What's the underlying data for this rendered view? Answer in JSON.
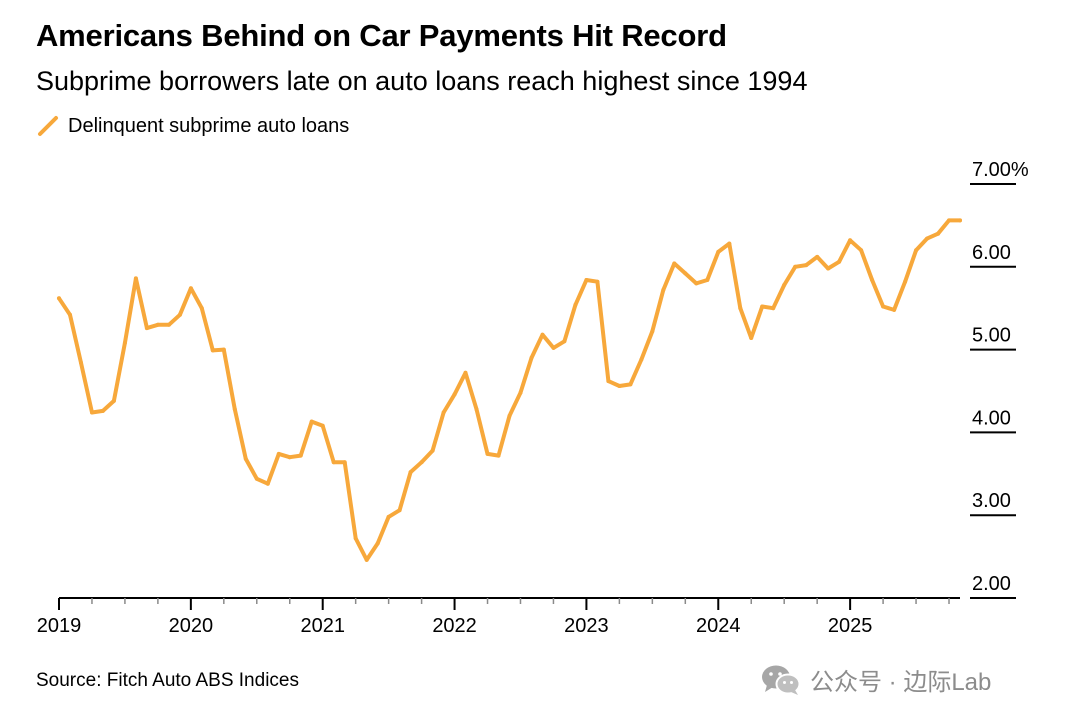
{
  "header": {
    "title": "Americans Behind on Car Payments Hit Record",
    "subtitle": "Subprime borrowers late on auto loans reach highest since 1994"
  },
  "legend": {
    "label": "Delinquent subprime auto loans",
    "icon": "line-stroke-icon"
  },
  "colors": {
    "series": "#F7A83B",
    "axis": "#000000",
    "tick": "#8a8a8a",
    "watermark": "#8c8c8c"
  },
  "footer": {
    "source": "Source: Fitch Auto ABS Indices"
  },
  "watermark": {
    "icon": "wechat-icon",
    "text": "公众号 · 边际Lab"
  },
  "chart_data": {
    "type": "line",
    "title": "Americans Behind on Car Payments Hit Record",
    "subtitle": "Subprime borrowers late on auto loans reach highest since 1994",
    "xlabel": "",
    "ylabel": "",
    "y_unit": "%",
    "ylim": [
      2.0,
      7.0
    ],
    "y_ticks": [
      {
        "value": 2.0,
        "label": "2.00"
      },
      {
        "value": 3.0,
        "label": "3.00"
      },
      {
        "value": 4.0,
        "label": "4.00"
      },
      {
        "value": 5.0,
        "label": "5.00"
      },
      {
        "value": 6.0,
        "label": "6.00"
      },
      {
        "value": 7.0,
        "label": "7.00%"
      }
    ],
    "x_start_year": 2019,
    "x_end_year": 2025.8333,
    "x_year_labels": [
      "2019",
      "2020",
      "2021",
      "2022",
      "2023",
      "2024",
      "2025"
    ],
    "legend_position": "top-left",
    "series": [
      {
        "name": "Delinquent subprime auto loans",
        "x": [
          2019.0,
          2019.0833,
          2019.1667,
          2019.25,
          2019.3333,
          2019.4167,
          2019.5,
          2019.5833,
          2019.6667,
          2019.75,
          2019.8333,
          2019.9167,
          2020.0,
          2020.0833,
          2020.1667,
          2020.25,
          2020.3333,
          2020.4167,
          2020.5,
          2020.5833,
          2020.6667,
          2020.75,
          2020.8333,
          2020.9167,
          2021.0,
          2021.0833,
          2021.1667,
          2021.25,
          2021.3333,
          2021.4167,
          2021.5,
          2021.5833,
          2021.6667,
          2021.75,
          2021.8333,
          2021.9167,
          2022.0,
          2022.0833,
          2022.1667,
          2022.25,
          2022.3333,
          2022.4167,
          2022.5,
          2022.5833,
          2022.6667,
          2022.75,
          2022.8333,
          2022.9167,
          2023.0,
          2023.0833,
          2023.1667,
          2023.25,
          2023.3333,
          2023.4167,
          2023.5,
          2023.5833,
          2023.6667,
          2023.75,
          2023.8333,
          2023.9167,
          2024.0,
          2024.0833,
          2024.1667,
          2024.25,
          2024.3333,
          2024.4167,
          2024.5,
          2024.5833,
          2024.6667,
          2024.75,
          2024.8333,
          2024.9167,
          2025.0,
          2025.0833,
          2025.1667,
          2025.25,
          2025.3333,
          2025.4167,
          2025.5,
          2025.5833,
          2025.6667,
          2025.75,
          2025.8333
        ],
        "values": [
          5.62,
          5.42,
          4.84,
          4.24,
          4.26,
          4.38,
          5.08,
          5.86,
          5.26,
          5.3,
          5.3,
          5.42,
          5.74,
          5.5,
          4.99,
          5.0,
          4.28,
          3.68,
          3.44,
          3.38,
          3.74,
          3.7,
          3.72,
          4.13,
          4.08,
          3.64,
          3.64,
          2.72,
          2.46,
          2.66,
          2.98,
          3.06,
          3.52,
          3.64,
          3.78,
          4.24,
          4.46,
          4.72,
          4.28,
          3.74,
          3.72,
          4.2,
          4.48,
          4.9,
          5.18,
          5.02,
          5.1,
          5.54,
          5.84,
          5.82,
          4.62,
          4.56,
          4.58,
          4.88,
          5.22,
          5.72,
          6.04,
          5.92,
          5.8,
          5.84,
          6.18,
          6.28,
          5.5,
          5.14,
          5.52,
          5.5,
          5.78,
          6.0,
          6.02,
          6.12,
          5.98,
          6.06,
          6.32,
          6.2,
          5.84,
          5.52,
          5.48,
          5.82,
          6.2,
          6.34,
          6.4,
          6.56,
          6.56
        ]
      }
    ]
  }
}
